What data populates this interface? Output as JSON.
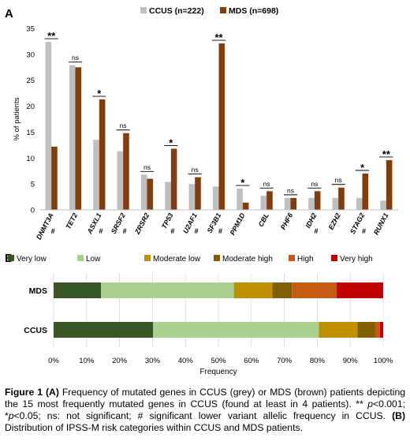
{
  "panel_a": {
    "letter": "A"
  },
  "panel_b": {
    "letter": "B"
  },
  "colors": {
    "ccus": "#bfbfbf",
    "mds": "#843c0c",
    "axis": "#bfbfbf",
    "grid": "#d9d9d9"
  },
  "chart_data": [
    {
      "type": "bar",
      "ylabel": "% of patients",
      "ylim": [
        0,
        35
      ],
      "yticks": [
        0,
        5,
        10,
        15,
        20,
        25,
        30,
        35
      ],
      "grid": false,
      "legend_position": "top",
      "categories": [
        "DNMT3A",
        "TET2",
        "ASXL1",
        "SRSF2",
        "ZRSR2",
        "TP53",
        "U2AF1",
        "SF3B1",
        "PPM1D",
        "CBL",
        "PHF6",
        "IDH2",
        "EZH2",
        "STAG2",
        "RUNX1"
      ],
      "hash_marks": [
        "#",
        "",
        "#",
        "#",
        "",
        "#",
        "#",
        "#",
        "",
        "",
        "",
        "#",
        "",
        "#",
        ""
      ],
      "significance": [
        "**",
        "ns",
        "*",
        "ns",
        "ns",
        "*",
        "ns",
        "**",
        "*",
        "ns",
        "ns",
        "ns",
        "ns",
        "*",
        "**"
      ],
      "series": [
        {
          "name": "CCUS (n=222)",
          "values": [
            32.4,
            27.9,
            13.5,
            11.3,
            6.8,
            5.4,
            5.0,
            4.5,
            4.1,
            2.7,
            2.3,
            2.3,
            2.3,
            2.3,
            1.8
          ]
        },
        {
          "name": "MDS (n=698)",
          "values": [
            12.2,
            27.5,
            21.3,
            14.8,
            6.0,
            11.8,
            6.3,
            32.1,
            1.4,
            3.6,
            2.3,
            3.6,
            4.3,
            7.0,
            9.6
          ]
        }
      ]
    },
    {
      "type": "bar",
      "orientation": "horizontal",
      "stacked": true,
      "xlabel": "Frequency",
      "xlim": [
        0,
        100
      ],
      "xticks": [
        "0%",
        "10%",
        "20%",
        "30%",
        "40%",
        "50%",
        "60%",
        "70%",
        "80%",
        "90%",
        "100%"
      ],
      "legend_position": "top",
      "categories": [
        "MDS",
        "CCUS"
      ],
      "series": [
        {
          "name": "Very low",
          "color": "#375623",
          "values": [
            14.4,
            30.2
          ]
        },
        {
          "name": "Low",
          "color": "#a9d08e",
          "values": [
            40.3,
            50.3
          ]
        },
        {
          "name": "Moderate low",
          "color": "#bf9000",
          "values": [
            11.7,
            11.7
          ]
        },
        {
          "name": "Moderate high",
          "color": "#7f6000",
          "values": [
            5.9,
            5.4
          ]
        },
        {
          "name": "High",
          "color": "#c55a11",
          "values": [
            13.6,
            1.4
          ]
        },
        {
          "name": "Very high",
          "color": "#c00000",
          "values": [
            14.1,
            1.0
          ]
        }
      ]
    }
  ],
  "caption": {
    "figure_label": "Figure 1",
    "part_a_label": "(A)",
    "part_a_text": " Frequency of mutated genes in CCUS (grey) or MDS (brown) patients depicting the 15 most frequently mutated genes in CCUS (found at least in 4 patients). ** ",
    "p1": "p",
    "p1_rest": "<0.001; *",
    "p2": "p",
    "p2_rest": "<0.05; ns: not significant; # significant lower variant allelic frequency in CCUS. ",
    "part_b_label": "(B)",
    "part_b_text": " Distribution of IPSS-M risk categories within CCUS and MDS patients."
  }
}
